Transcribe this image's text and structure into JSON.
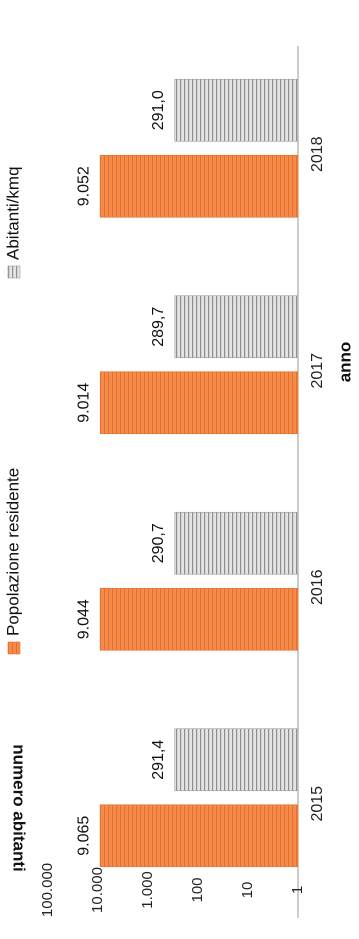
{
  "chart_data": {
    "type": "bar",
    "scale": "log",
    "orientation": "rotated",
    "categories": [
      "2015",
      "2016",
      "2017",
      "2018"
    ],
    "series": [
      {
        "name": "Popolazione residente",
        "color": "#f58a4b",
        "values": [
          9065,
          9044,
          9014,
          9052
        ],
        "labels": [
          "9.065",
          "9.044",
          "9.014",
          "9.052"
        ]
      },
      {
        "name": "Abitanti/kmq",
        "color": "#c8c8c8",
        "values": [
          291.4,
          290.7,
          289.7,
          291.0
        ],
        "labels": [
          "291,4",
          "290,7",
          "289,7",
          "291,0"
        ]
      }
    ],
    "ticks": [
      {
        "value": 1,
        "label": "1"
      },
      {
        "value": 10,
        "label": "10"
      },
      {
        "value": 100,
        "label": "100"
      },
      {
        "value": 1000,
        "label": "1.000"
      },
      {
        "value": 10000,
        "label": "10.000"
      },
      {
        "value": 100000,
        "label": "100.000"
      }
    ],
    "ylim": [
      1,
      100000
    ],
    "xlabel": "anno",
    "ylabel": "numero abitanti",
    "legend_position": "top",
    "grid": false
  }
}
